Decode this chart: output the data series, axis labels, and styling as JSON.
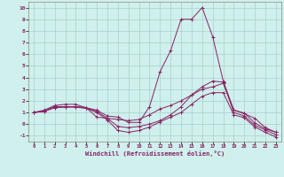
{
  "xlabel": "Windchill (Refroidissement éolien,°C)",
  "background_color": "#cff0ec",
  "grid_color": "#aacfcb",
  "line_color": "#882266",
  "xlim": [
    -0.5,
    23.5
  ],
  "ylim": [
    -1.5,
    10.5
  ],
  "xticks": [
    0,
    1,
    2,
    3,
    4,
    5,
    6,
    7,
    8,
    9,
    10,
    11,
    12,
    13,
    14,
    15,
    16,
    17,
    18,
    19,
    20,
    21,
    22,
    23
  ],
  "yticks": [
    -1,
    0,
    1,
    2,
    3,
    4,
    5,
    6,
    7,
    8,
    9,
    10
  ],
  "series": [
    [
      1,
      1.1,
      1.5,
      1.5,
      1.5,
      1.4,
      1.2,
      0.7,
      0.6,
      0.15,
      0.15,
      1.5,
      4.5,
      6.3,
      9.0,
      9.0,
      10.0,
      7.5,
      3.7,
      1.2,
      0.9,
      0.5,
      -0.3,
      -0.7
    ],
    [
      1,
      1.2,
      1.6,
      1.7,
      1.7,
      1.4,
      0.6,
      0.5,
      0.4,
      0.3,
      0.4,
      0.8,
      1.3,
      1.6,
      2.0,
      2.5,
      3.0,
      3.2,
      3.5,
      1.2,
      0.95,
      0.1,
      -0.4,
      -0.7
    ],
    [
      1,
      1.1,
      1.5,
      1.5,
      1.5,
      1.4,
      1.1,
      0.5,
      -0.2,
      -0.3,
      -0.2,
      0.0,
      0.3,
      0.8,
      1.5,
      2.5,
      3.2,
      3.7,
      3.6,
      1.0,
      0.7,
      -0.1,
      -0.5,
      -0.9
    ],
    [
      1,
      1.1,
      1.4,
      1.45,
      1.45,
      1.35,
      1.0,
      0.35,
      -0.55,
      -0.7,
      -0.55,
      -0.25,
      0.2,
      0.6,
      1.0,
      1.7,
      2.4,
      2.7,
      2.7,
      0.8,
      0.55,
      -0.25,
      -0.7,
      -1.1
    ]
  ]
}
